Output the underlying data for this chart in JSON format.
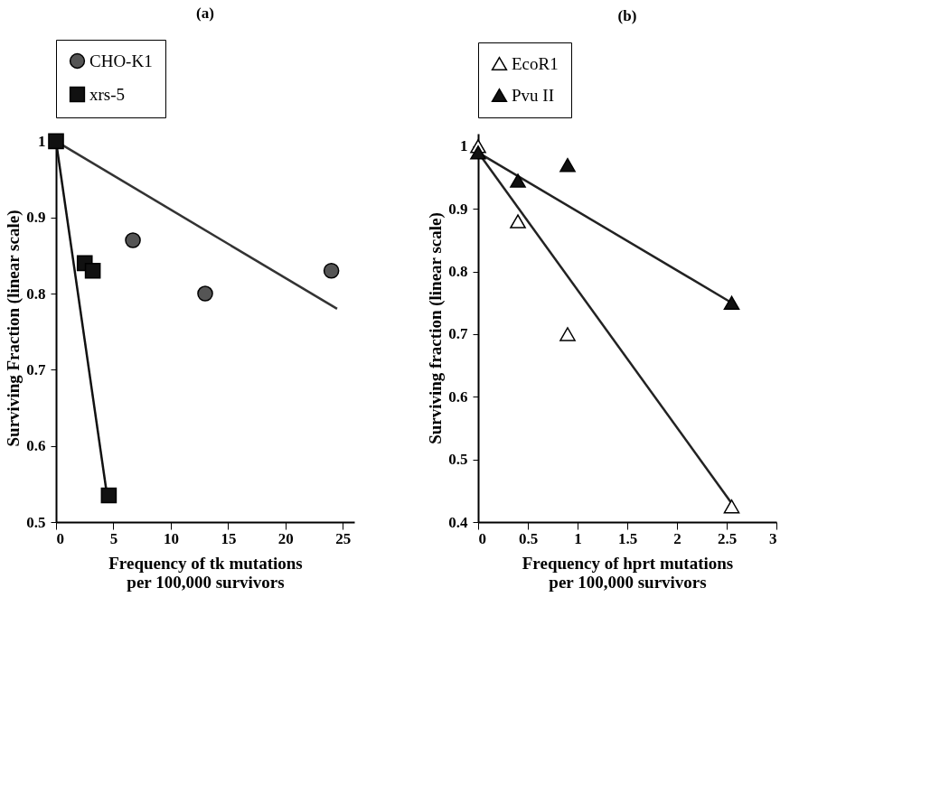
{
  "chart_data": [
    {
      "type": "scatter",
      "title": "(a)",
      "xlabel": "Frequency of tk mutations\nper 100,000 survivors",
      "ylabel": "Surviving Fraction (linear scale)",
      "xlim": [
        0,
        26
      ],
      "xticks": [
        0,
        5,
        10,
        15,
        20,
        25
      ],
      "ylim": [
        0.5,
        1.01
      ],
      "yticks": [
        0.5,
        0.6,
        0.7,
        0.8,
        0.9,
        1
      ],
      "grid": false,
      "legend": "top",
      "series": [
        {
          "name": "CHO-K1",
          "color": "#555555",
          "marker": "circle",
          "x": [
            6.7,
            13,
            24
          ],
          "values": [
            0.87,
            0.8,
            0.83
          ]
        },
        {
          "name": "xrs-5",
          "color": "#111111",
          "marker": "square",
          "x": [
            0,
            2.5,
            3.2,
            4.6
          ],
          "values": [
            1,
            0.84,
            0.83,
            0.535
          ]
        },
        {
          "type": "line",
          "color": "#333333",
          "x": [
            0,
            24.5
          ],
          "values": [
            1,
            0.78
          ]
        },
        {
          "type": "line",
          "color": "#111111",
          "x": [
            0,
            4.4
          ],
          "values": [
            1,
            0.54
          ]
        }
      ]
    },
    {
      "type": "scatter",
      "title": "(b)",
      "xlabel": "Frequency of hprt mutations\nper 100,000 survivors",
      "ylabel": "Surviving fraction (linear scale)",
      "xlim": [
        0,
        3
      ],
      "xticks": [
        0,
        0.5,
        1,
        1.5,
        2,
        2.5,
        3
      ],
      "ylim": [
        0.4,
        1.02
      ],
      "yticks": [
        0.4,
        0.5,
        0.6,
        0.7,
        0.8,
        0.9,
        1
      ],
      "grid": false,
      "legend": "top",
      "series": [
        {
          "name": "EcoR1",
          "color": "#ffffff",
          "marker": "triangle",
          "x": [
            0,
            0.4,
            0.9,
            2.55
          ],
          "values": [
            1,
            0.88,
            0.7,
            0.425
          ]
        },
        {
          "name": "Pvu II",
          "color": "#111111",
          "marker": "triangle",
          "x": [
            0,
            0.4,
            0.9,
            2.55
          ],
          "values": [
            0.99,
            0.945,
            0.97,
            0.75
          ]
        },
        {
          "type": "line",
          "color": "#222222",
          "x": [
            0,
            2.55
          ],
          "values": [
            0.99,
            0.43
          ]
        },
        {
          "type": "line",
          "color": "#222222",
          "x": [
            0,
            2.55
          ],
          "values": [
            0.99,
            0.75
          ]
        }
      ]
    }
  ]
}
